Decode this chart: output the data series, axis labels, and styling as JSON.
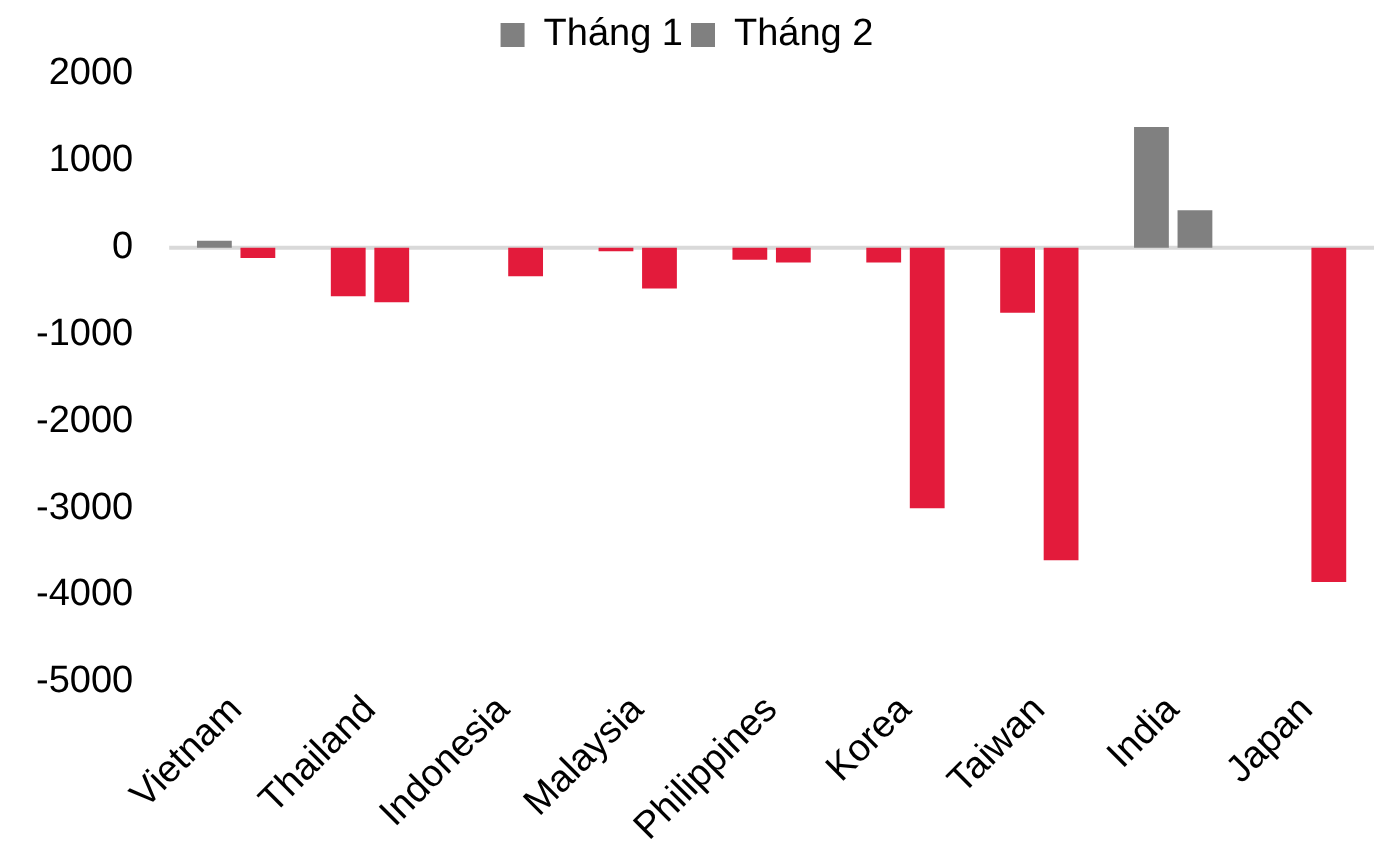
{
  "chart_data": {
    "type": "bar",
    "categories": [
      "Vietnam",
      "Thailand",
      "Indonesia",
      "Malaysia",
      "Philippines",
      "Korea",
      "Taiwan",
      "India",
      "Japan"
    ],
    "series": [
      {
        "name": "Tháng 1",
        "color": "#808080",
        "values": [
          80,
          -560,
          0,
          -40,
          -140,
          -170,
          -750,
          1390,
          0
        ],
        "colors": [
          "#808080",
          "#e31b3b",
          "#e31b3b",
          "#e31b3b",
          "#e31b3b",
          "#e31b3b",
          "#e31b3b",
          "#808080",
          "#e31b3b"
        ]
      },
      {
        "name": "Tháng 2",
        "color": "#808080",
        "values": [
          -120,
          -630,
          -330,
          -470,
          -170,
          -3000,
          -3600,
          430,
          -3850
        ],
        "colors": [
          "#e31b3b",
          "#e31b3b",
          "#e31b3b",
          "#e31b3b",
          "#e31b3b",
          "#e31b3b",
          "#e31b3b",
          "#808080",
          "#e31b3b"
        ]
      }
    ],
    "ylim": [
      -5000,
      2000
    ],
    "yticks": [
      -5000,
      -4000,
      -3000,
      -2000,
      -1000,
      0,
      1000,
      2000
    ],
    "grid": false,
    "legend": "top",
    "ref_lines": [
      {
        "axis": "y",
        "value": 0,
        "color": "#d9d9d9"
      }
    ]
  }
}
